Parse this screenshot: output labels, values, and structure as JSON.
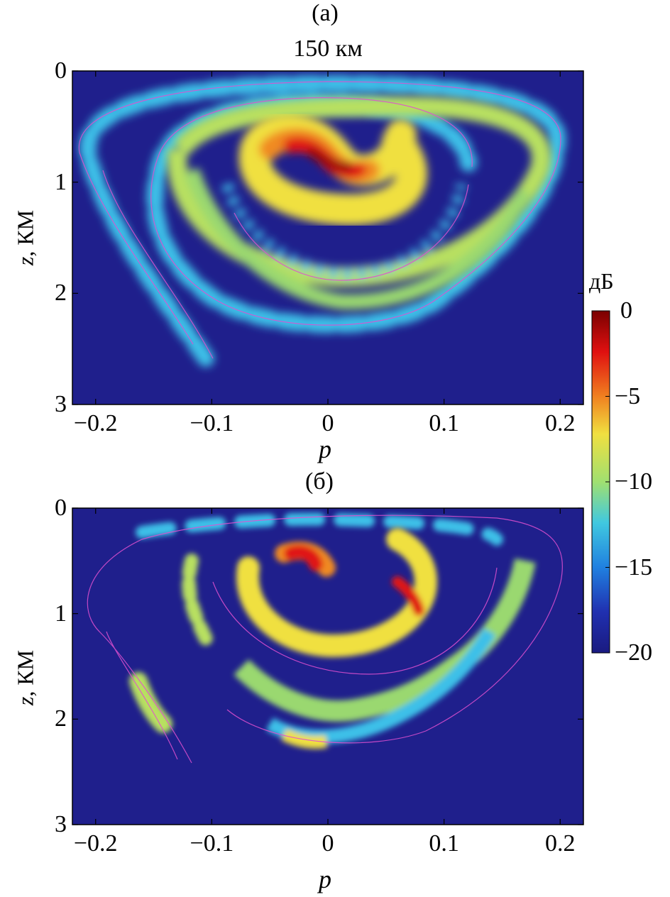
{
  "colors": {
    "background": "#1f1f8c",
    "cyan": "#3cc0e8",
    "green_yellow": "#b8e060",
    "yellow": "#f0e040",
    "orange": "#f08a20",
    "red": "#e01818",
    "dark_red": "#9a0808",
    "contour": "#e050d0"
  },
  "chart_data": [
    {
      "type": "heatmap",
      "panel_label": "(а)",
      "title": "150 км",
      "xlabel": "p",
      "ylabel_var": "z",
      "ylabel_unit": ", КМ",
      "xlim": [
        -0.22,
        0.22
      ],
      "ylim": [
        3,
        0
      ],
      "xticks": [
        -0.2,
        -0.1,
        0,
        0.1,
        0.2
      ],
      "xtick_labels": [
        "−0.2",
        "−0.1",
        "0",
        "0.1",
        "0.2"
      ],
      "yticks": [
        0,
        1,
        2,
        3
      ],
      "ytick_labels": [
        "0",
        "1",
        "2",
        "3"
      ],
      "description_of_field": "spiral intensity pattern with maximum near p=0, z=0.8"
    },
    {
      "type": "heatmap",
      "panel_label": "(б)",
      "title": "",
      "xlabel": "p",
      "ylabel_var": "z",
      "ylabel_unit": ", КМ",
      "xlim": [
        -0.22,
        0.22
      ],
      "ylim": [
        3,
        0
      ],
      "xticks": [
        -0.2,
        -0.1,
        0,
        0.1,
        0.2
      ],
      "xtick_labels": [
        "−0.2",
        "−0.1",
        "0",
        "0.1",
        "0.2"
      ],
      "yticks": [
        0,
        1,
        2,
        3
      ],
      "ytick_labels": [
        "0",
        "1",
        "2",
        "3"
      ]
    }
  ],
  "colorbar": {
    "unit": "дБ",
    "range": [
      -20,
      0
    ],
    "ticks": [
      0,
      -5,
      -10,
      -15,
      -20
    ],
    "tick_labels": [
      "0",
      "−5",
      "−10",
      "−15",
      "−20"
    ]
  }
}
